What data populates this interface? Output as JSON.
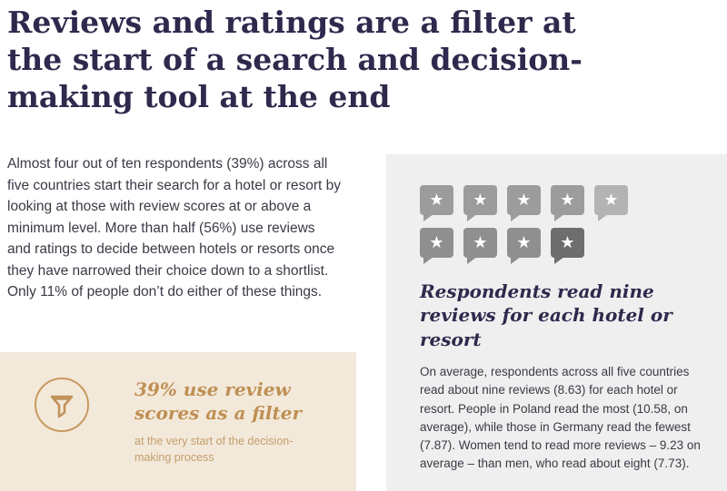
{
  "colors": {
    "heading_navy": "#2d2a4d",
    "body_text": "#3a3a46",
    "callout_background": "#f3e9da",
    "accent_tan": "#c0935b",
    "panel_background": "#efefef"
  },
  "title": {
    "lines": [
      "Reviews and ratings are a filter at",
      "the start of a search and decision-",
      "making tool at the end"
    ]
  },
  "intro": {
    "text": "Almost four out of ten respondents (39%) across all five countries start their search for a hotel or resort by looking at those with review scores at or above a minimum level. More than half (56%) use reviews and ratings to decide between hotels or resorts once they have narrowed their choice down to a shortlist. Only 11% of people don’t do either of these things."
  },
  "filter_callout": {
    "icon": "funnel-icon",
    "headline": "39% use review scores as a filter",
    "subtext": "at the very start of the decision-making process"
  },
  "reviews_panel": {
    "icon": "review-bubble-star-icon",
    "star_glyph": "★",
    "tiles_per_row": 5,
    "tile_colors": [
      "#9c9c9c",
      "#9c9c9c",
      "#9c9c9c",
      "#9c9c9c",
      "#b3b3b3",
      "#8f8f8f",
      "#8f8f8f",
      "#8f8f8f",
      "#6e6e6e"
    ],
    "heading": "Respondents read nine reviews for each hotel or resort",
    "body": "On average, respondents across all five countries read about nine reviews (8.63) for each hotel or resort. People in Poland read the most (10.58, on average), while those in Germany read the fewest (7.87). Women tend to read more reviews – 9.23 on average – than men, who read about eight (7.73)."
  }
}
